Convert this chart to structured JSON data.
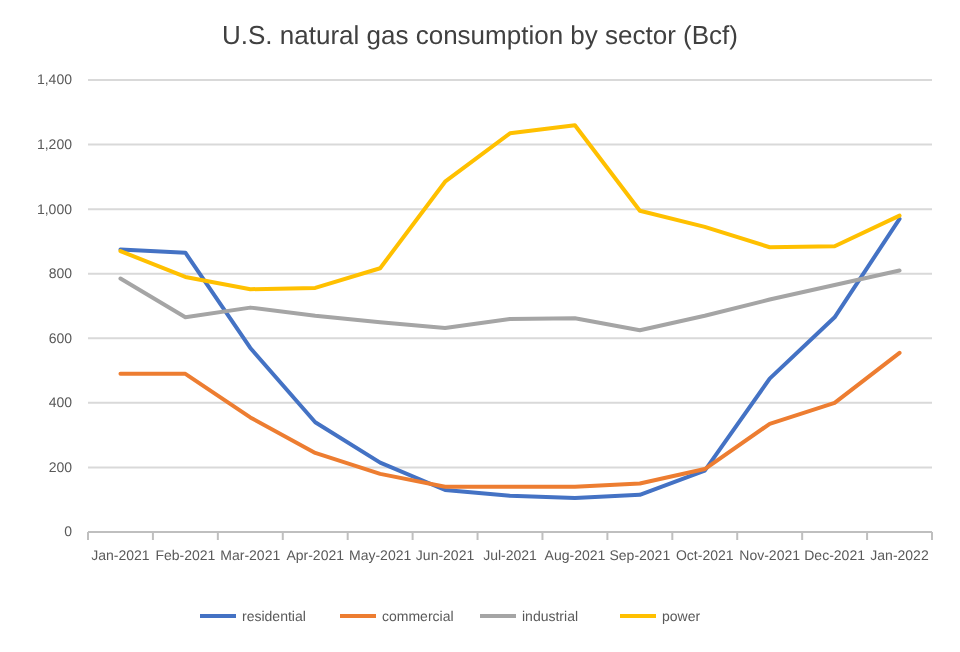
{
  "chart_data": {
    "type": "line",
    "title": "U.S. natural gas consumption by sector (Bcf)",
    "categories": [
      "Jan-2021",
      "Feb-2021",
      "Mar-2021",
      "Apr-2021",
      "May-2021",
      "Jun-2021",
      "Jul-2021",
      "Aug-2021",
      "Sep-2021",
      "Oct-2021",
      "Nov-2021",
      "Dec-2021",
      "Jan-2022"
    ],
    "series": [
      {
        "name": "residential",
        "color": "#4472c4",
        "values": [
          875,
          865,
          570,
          340,
          215,
          130,
          112,
          105,
          115,
          190,
          475,
          665,
          970
        ]
      },
      {
        "name": "commercial",
        "color": "#ed7d31",
        "values": [
          490,
          490,
          355,
          245,
          180,
          140,
          140,
          140,
          150,
          195,
          335,
          400,
          555
        ]
      },
      {
        "name": "industrial",
        "color": "#a5a5a5",
        "values": [
          785,
          665,
          695,
          670,
          650,
          632,
          660,
          662,
          625,
          670,
          720,
          765,
          810
        ]
      },
      {
        "name": "power",
        "color": "#ffc000",
        "values": [
          870,
          790,
          752,
          756,
          817,
          1085,
          1235,
          1260,
          995,
          945,
          882,
          885,
          980
        ]
      }
    ],
    "ylim": [
      0,
      1400
    ],
    "yticks": [
      0,
      {
        "value": 200,
        "label": "200"
      },
      {
        "value": 400,
        "label": "400"
      },
      {
        "value": 600,
        "label": "600"
      },
      {
        "value": 800,
        "label": "800"
      },
      {
        "value": 1000,
        "label": "1,000"
      },
      {
        "value": 1200,
        "label": "1,200"
      },
      {
        "value": 1400,
        "label": "1,400"
      }
    ],
    "grid": "y",
    "legend": "bottom",
    "line_style": "solid",
    "marker": "none"
  }
}
